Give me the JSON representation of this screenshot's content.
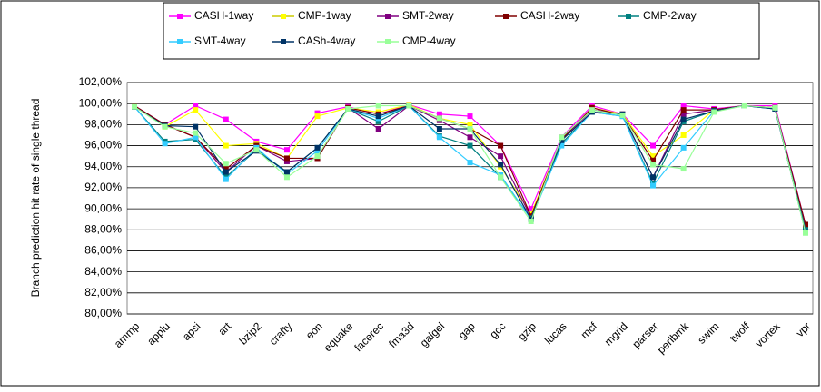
{
  "chart_data": {
    "type": "line",
    "y_axis_label": "Branch prediction hit rate of single thread",
    "categories": [
      "ammp",
      "applu",
      "apsi",
      "art",
      "bzip2",
      "crafty",
      "eon",
      "equake",
      "facerec",
      "fma3d",
      "galgel",
      "gap",
      "gcc",
      "gzip",
      "lucas",
      "mcf",
      "mgrid",
      "parser",
      "perlbmk",
      "swim",
      "twolf",
      "vortex",
      "vpr"
    ],
    "series": [
      {
        "name": "CASH-1way",
        "color": "#ff00ff",
        "values": [
          99.8,
          98.0,
          99.8,
          98.5,
          96.4,
          95.6,
          99.1,
          99.7,
          99.0,
          99.9,
          99.0,
          98.8,
          96.0,
          90.0,
          96.8,
          99.8,
          99.0,
          96.0,
          99.8,
          99.5,
          99.8,
          99.8,
          88.5
        ]
      },
      {
        "name": "CMP-1way",
        "color": "#ffff00",
        "values": [
          99.8,
          97.8,
          99.4,
          96.0,
          96.2,
          94.8,
          98.8,
          99.6,
          99.2,
          99.9,
          98.6,
          98.0,
          94.0,
          89.5,
          96.6,
          99.6,
          99.0,
          95.0,
          97.0,
          99.4,
          99.8,
          99.6,
          88.0
        ]
      },
      {
        "name": "SMT-2way",
        "color": "#800080",
        "values": [
          99.7,
          98.0,
          96.8,
          93.5,
          96.0,
          94.5,
          94.8,
          99.6,
          97.6,
          99.8,
          98.4,
          96.8,
          95.0,
          89.2,
          96.6,
          99.4,
          99.0,
          93.0,
          99.0,
          99.4,
          99.8,
          99.6,
          88.2
        ]
      },
      {
        "name": "CASH-2way",
        "color": "#800000",
        "values": [
          99.8,
          98.0,
          96.8,
          93.8,
          96.0,
          94.8,
          94.8,
          99.6,
          99.0,
          99.8,
          98.6,
          97.6,
          96.0,
          89.3,
          96.6,
          99.6,
          98.9,
          94.6,
          99.4,
          99.4,
          99.8,
          99.6,
          88.5
        ]
      },
      {
        "name": "CMP-2way",
        "color": "#008080",
        "values": [
          99.7,
          96.4,
          96.6,
          93.0,
          95.6,
          93.5,
          95.8,
          99.5,
          98.3,
          99.8,
          96.9,
          96.0,
          93.0,
          89.1,
          96.2,
          99.2,
          98.8,
          92.4,
          98.3,
          99.3,
          99.8,
          99.5,
          88.0
        ]
      },
      {
        "name": "SMT-4way",
        "color": "#33ccff",
        "values": [
          99.7,
          96.2,
          96.8,
          92.8,
          95.8,
          93.3,
          95.5,
          99.5,
          98.6,
          99.8,
          96.8,
          94.4,
          93.2,
          89.0,
          96.0,
          99.2,
          98.8,
          92.2,
          95.8,
          99.3,
          99.8,
          99.5,
          87.8
        ]
      },
      {
        "name": "CASh-4way",
        "color": "#003366",
        "values": [
          99.7,
          97.9,
          97.8,
          93.5,
          95.5,
          93.5,
          95.8,
          99.5,
          98.8,
          99.8,
          97.6,
          97.6,
          94.2,
          89.0,
          96.5,
          99.2,
          99.0,
          93.0,
          98.5,
          99.3,
          99.8,
          99.5,
          87.8
        ]
      },
      {
        "name": "CMP-4way",
        "color": "#99ff99",
        "values": [
          99.7,
          97.8,
          97.2,
          94.3,
          95.6,
          93.0,
          95.0,
          99.5,
          99.8,
          99.8,
          98.6,
          97.6,
          93.0,
          88.8,
          96.8,
          99.4,
          98.9,
          94.2,
          93.8,
          99.2,
          99.8,
          99.6,
          87.7
        ]
      }
    ],
    "ylim": [
      80,
      102
    ],
    "yticks": [
      {
        "value": 80,
        "label": "80,00%"
      },
      {
        "value": 82,
        "label": "82,00%"
      },
      {
        "value": 84,
        "label": "84,00%"
      },
      {
        "value": 86,
        "label": "86,00%"
      },
      {
        "value": 88,
        "label": "88,00%"
      },
      {
        "value": 90,
        "label": "90,00%"
      },
      {
        "value": 92,
        "label": "92,00%"
      },
      {
        "value": 94,
        "label": "94,00%"
      },
      {
        "value": 96,
        "label": "96,00%"
      },
      {
        "value": 98,
        "label": "98,00%"
      },
      {
        "value": 100,
        "label": "100,00%"
      },
      {
        "value": 102,
        "label": "102,00%"
      }
    ],
    "grid": true
  }
}
